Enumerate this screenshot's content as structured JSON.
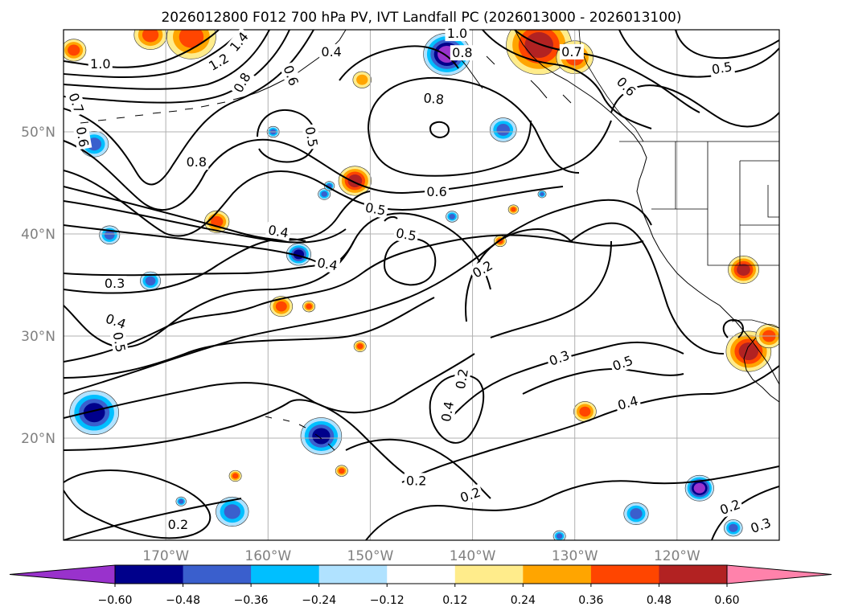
{
  "title": "2026012800 F012 700 hPa PV, IVT Landfall PC (2026013000 - 2026013100)",
  "map": {
    "lon_range": [
      -180,
      -110
    ],
    "lat_range": [
      10,
      60
    ],
    "lon_ticks": [
      {
        "value": -170,
        "label": "170°W"
      },
      {
        "value": -160,
        "label": "160°W"
      },
      {
        "value": -150,
        "label": "150°W"
      },
      {
        "value": -140,
        "label": "140°W"
      },
      {
        "value": -130,
        "label": "130°W"
      },
      {
        "value": -120,
        "label": "120°W"
      }
    ],
    "lat_ticks": [
      {
        "value": 20,
        "label": "20°N"
      },
      {
        "value": 30,
        "label": "30°N"
      },
      {
        "value": 40,
        "label": "40°N"
      },
      {
        "value": 50,
        "label": "50°N"
      }
    ]
  },
  "contour_labels": [
    {
      "text": "1.0",
      "lon": -176.4,
      "lat": 56.6,
      "rot": 0
    },
    {
      "text": "1.2",
      "lon": -164.8,
      "lat": 56.8,
      "rot": -30
    },
    {
      "text": "1.4",
      "lon": -162.8,
      "lat": 58.8,
      "rot": -50
    },
    {
      "text": "0.8",
      "lon": -162.5,
      "lat": 54.8,
      "rot": -60
    },
    {
      "text": "0.6",
      "lon": -157.8,
      "lat": 55.5,
      "rot": 70
    },
    {
      "text": "0.4",
      "lon": -153.8,
      "lat": 57.8,
      "rot": 0
    },
    {
      "text": "1.0",
      "lon": -141.5,
      "lat": 59.6,
      "rot": 0
    },
    {
      "text": "0.8",
      "lon": -141.0,
      "lat": 57.7,
      "rot": 0
    },
    {
      "text": "0.7",
      "lon": -130.3,
      "lat": 57.8,
      "rot": 0
    },
    {
      "text": "0.6",
      "lon": -125.0,
      "lat": 54.4,
      "rot": 45
    },
    {
      "text": "0.5",
      "lon": -115.6,
      "lat": 56.2,
      "rot": -10
    },
    {
      "text": "0.8",
      "lon": -143.8,
      "lat": 53.2,
      "rot": 5
    },
    {
      "text": "0.7",
      "lon": -178.8,
      "lat": 52.8,
      "rot": 70
    },
    {
      "text": "0.6",
      "lon": -178.2,
      "lat": 49.5,
      "rot": 80
    },
    {
      "text": "0.5",
      "lon": -155.8,
      "lat": 49.5,
      "rot": 80
    },
    {
      "text": "0.8",
      "lon": -167.0,
      "lat": 47.0,
      "rot": 0
    },
    {
      "text": "0.6",
      "lon": -143.5,
      "lat": 44.1,
      "rot": 0
    },
    {
      "text": "0.5",
      "lon": -149.5,
      "lat": 42.4,
      "rot": 10
    },
    {
      "text": "0.5",
      "lon": -146.5,
      "lat": 39.9,
      "rot": 10
    },
    {
      "text": "0.4",
      "lon": -159.0,
      "lat": 40.2,
      "rot": 10
    },
    {
      "text": "0.4",
      "lon": -154.2,
      "lat": 37.0,
      "rot": 10
    },
    {
      "text": "0.2",
      "lon": -139.0,
      "lat": 36.5,
      "rot": -30
    },
    {
      "text": "0.3",
      "lon": -175.0,
      "lat": 35.1,
      "rot": 0
    },
    {
      "text": "0.4",
      "lon": -174.9,
      "lat": 31.4,
      "rot": 20
    },
    {
      "text": "0.5",
      "lon": -174.6,
      "lat": 29.4,
      "rot": 80
    },
    {
      "text": "0.3",
      "lon": -131.5,
      "lat": 27.8,
      "rot": -20
    },
    {
      "text": "0.5",
      "lon": -125.3,
      "lat": 27.3,
      "rot": -20
    },
    {
      "text": "0.2",
      "lon": -141.0,
      "lat": 25.8,
      "rot": -80
    },
    {
      "text": "0.4",
      "lon": -142.4,
      "lat": 22.6,
      "rot": -80
    },
    {
      "text": "0.4",
      "lon": -124.8,
      "lat": 23.4,
      "rot": -15
    },
    {
      "text": "0.2",
      "lon": -145.5,
      "lat": 15.8,
      "rot": 0
    },
    {
      "text": "0.2",
      "lon": -140.2,
      "lat": 14.4,
      "rot": -20
    },
    {
      "text": "0.2",
      "lon": -114.8,
      "lat": 13.2,
      "rot": -20
    },
    {
      "text": "0.3",
      "lon": -111.8,
      "lat": 11.4,
      "rot": -20
    },
    {
      "text": "0.2",
      "lon": -168.8,
      "lat": 11.5,
      "rot": 0
    }
  ],
  "colorbar": {
    "levels": [
      -0.6,
      -0.48,
      -0.36,
      -0.24,
      -0.12,
      0.12,
      0.24,
      0.36,
      0.48,
      0.6
    ],
    "tick_labels": [
      "−0.60",
      "−0.48",
      "−0.36",
      "−0.24",
      "−0.12",
      "0.12",
      "0.24",
      "0.36",
      "0.48",
      "0.60"
    ],
    "colors": [
      "#9932CC",
      "#00008B",
      "#3A5FCD",
      "#00BFFF",
      "#B0E2FF",
      "#FFFFFF",
      "#FFEC8B",
      "#FFA500",
      "#FF4500",
      "#B22222",
      "#FF82AB"
    ]
  },
  "anomalies": [
    {
      "lon": -179.0,
      "lat": 58.0,
      "r": 1.2,
      "sign": 1,
      "mag": 3
    },
    {
      "lon": -167.5,
      "lat": 59.3,
      "r": 2.4,
      "sign": 1,
      "mag": 3
    },
    {
      "lon": -171.5,
      "lat": 59.5,
      "r": 1.6,
      "sign": 1,
      "mag": 3
    },
    {
      "lon": -133.5,
      "lat": 58.5,
      "r": 3.2,
      "sign": 1,
      "mag": 4
    },
    {
      "lon": -130.0,
      "lat": 57.3,
      "r": 1.8,
      "sign": 1,
      "mag": 3
    },
    {
      "lon": -142.5,
      "lat": 57.6,
      "r": 2.3,
      "sign": -1,
      "mag": 5
    },
    {
      "lon": -150.8,
      "lat": 55.1,
      "r": 0.9,
      "sign": 1,
      "mag": 2
    },
    {
      "lon": -137.0,
      "lat": 50.2,
      "r": 1.3,
      "sign": -1,
      "mag": 3
    },
    {
      "lon": -159.5,
      "lat": 50.0,
      "r": 0.6,
      "sign": -1,
      "mag": 3
    },
    {
      "lon": -177.0,
      "lat": 48.8,
      "r": 1.4,
      "sign": -1,
      "mag": 3
    },
    {
      "lon": -151.5,
      "lat": 45.2,
      "r": 1.6,
      "sign": 1,
      "mag": 4
    },
    {
      "lon": -154.5,
      "lat": 43.9,
      "r": 0.6,
      "sign": -1,
      "mag": 3
    },
    {
      "lon": -136.0,
      "lat": 42.4,
      "r": 0.5,
      "sign": 1,
      "mag": 3
    },
    {
      "lon": -133.2,
      "lat": 43.9,
      "r": 0.4,
      "sign": -1,
      "mag": 3
    },
    {
      "lon": -165.0,
      "lat": 41.2,
      "r": 1.2,
      "sign": 1,
      "mag": 3
    },
    {
      "lon": -142.0,
      "lat": 41.7,
      "r": 0.6,
      "sign": -1,
      "mag": 3
    },
    {
      "lon": -175.5,
      "lat": 39.9,
      "r": 1.0,
      "sign": -1,
      "mag": 3
    },
    {
      "lon": -157.0,
      "lat": 38.0,
      "r": 1.2,
      "sign": -1,
      "mag": 4
    },
    {
      "lon": -137.3,
      "lat": 39.3,
      "r": 0.6,
      "sign": 1,
      "mag": 3
    },
    {
      "lon": -171.5,
      "lat": 35.4,
      "r": 1.0,
      "sign": -1,
      "mag": 3
    },
    {
      "lon": -158.7,
      "lat": 32.9,
      "r": 1.1,
      "sign": 1,
      "mag": 3
    },
    {
      "lon": -156.0,
      "lat": 32.9,
      "r": 0.6,
      "sign": 1,
      "mag": 3
    },
    {
      "lon": -151.0,
      "lat": 29.0,
      "r": 0.6,
      "sign": 1,
      "mag": 3
    },
    {
      "lon": -113.5,
      "lat": 36.5,
      "r": 1.5,
      "sign": 1,
      "mag": 4
    },
    {
      "lon": -113.0,
      "lat": 28.5,
      "r": 2.2,
      "sign": 1,
      "mag": 4
    },
    {
      "lon": -111.0,
      "lat": 30.0,
      "r": 1.3,
      "sign": 1,
      "mag": 3
    },
    {
      "lon": -177.0,
      "lat": 22.5,
      "r": 2.4,
      "sign": -1,
      "mag": 4
    },
    {
      "lon": -154.8,
      "lat": 20.2,
      "r": 2.0,
      "sign": -1,
      "mag": 4
    },
    {
      "lon": -129.0,
      "lat": 22.6,
      "r": 1.1,
      "sign": 1,
      "mag": 3
    },
    {
      "lon": -163.5,
      "lat": 12.8,
      "r": 1.6,
      "sign": -1,
      "mag": 3
    },
    {
      "lon": -124.0,
      "lat": 12.6,
      "r": 1.2,
      "sign": -1,
      "mag": 3
    },
    {
      "lon": -117.8,
      "lat": 15.1,
      "r": 1.4,
      "sign": -1,
      "mag": 5
    },
    {
      "lon": -114.5,
      "lat": 11.2,
      "r": 0.9,
      "sign": -1,
      "mag": 3
    },
    {
      "lon": -131.5,
      "lat": 10.4,
      "r": 0.6,
      "sign": -1,
      "mag": 3
    },
    {
      "lon": -163.2,
      "lat": 16.3,
      "r": 0.6,
      "sign": 1,
      "mag": 3
    },
    {
      "lon": -152.8,
      "lat": 16.8,
      "r": 0.6,
      "sign": 1,
      "mag": 3
    },
    {
      "lon": -154.0,
      "lat": 44.7,
      "r": 0.5,
      "sign": -1,
      "mag": 3
    },
    {
      "lon": -168.5,
      "lat": 13.8,
      "r": 0.5,
      "sign": -1,
      "mag": 3
    }
  ]
}
